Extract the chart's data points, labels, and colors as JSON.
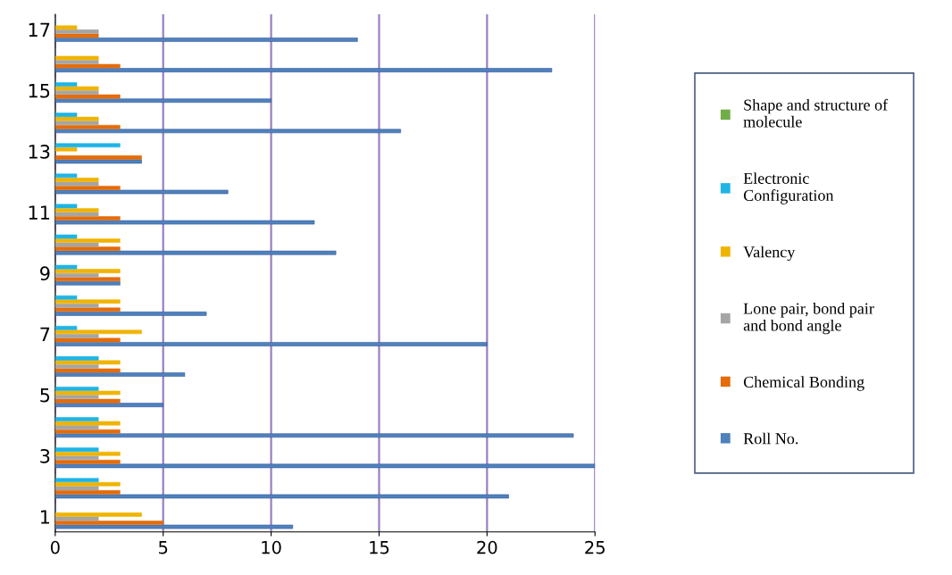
{
  "chart_data": {
    "type": "bar",
    "orientation": "horizontal",
    "categories": [
      "17",
      null,
      "15",
      null,
      "13",
      null,
      "11",
      null,
      "9",
      null,
      "7",
      null,
      "5",
      null,
      "3",
      null,
      "1"
    ],
    "series": [
      {
        "name": "Roll No.",
        "color": "#4f81bd",
        "values": [
          14,
          23,
          10,
          16,
          4,
          8,
          12,
          13,
          3,
          7,
          20,
          6,
          5,
          24,
          25,
          21,
          11
        ]
      },
      {
        "name": "Chemical Bonding",
        "color": "#e46c0a",
        "values": [
          2,
          3,
          3,
          3,
          4,
          3,
          3,
          3,
          3,
          3,
          3,
          3,
          3,
          3,
          3,
          3,
          5
        ]
      },
      {
        "name": "Lone pair, bond pair and bond angle",
        "color": "#a5a5a5",
        "values": [
          2,
          2,
          2,
          2,
          0,
          2,
          2,
          2,
          2,
          2,
          2,
          2,
          2,
          2,
          2,
          2,
          2
        ]
      },
      {
        "name": "Valency",
        "color": "#f0b400",
        "values": [
          1,
          2,
          2,
          2,
          1,
          2,
          2,
          3,
          3,
          3,
          4,
          3,
          3,
          3,
          3,
          3,
          4
        ]
      },
      {
        "name": "Electronic Configuration",
        "color": "#1fb4e6",
        "values": [
          0,
          0,
          1,
          1,
          3,
          1,
          1,
          1,
          1,
          1,
          1,
          2,
          2,
          2,
          2,
          2,
          0
        ]
      },
      {
        "name": "Shape and structure of molecule",
        "color": "#70ad47",
        "values": [
          0,
          0,
          0,
          0,
          0,
          0,
          0,
          0,
          0,
          0,
          0,
          0,
          0,
          0,
          0,
          0,
          0
        ]
      }
    ],
    "xlim": [
      0,
      25
    ],
    "xticks": [
      0,
      5,
      10,
      15,
      20,
      25
    ],
    "grid": "x",
    "legend": "right"
  }
}
